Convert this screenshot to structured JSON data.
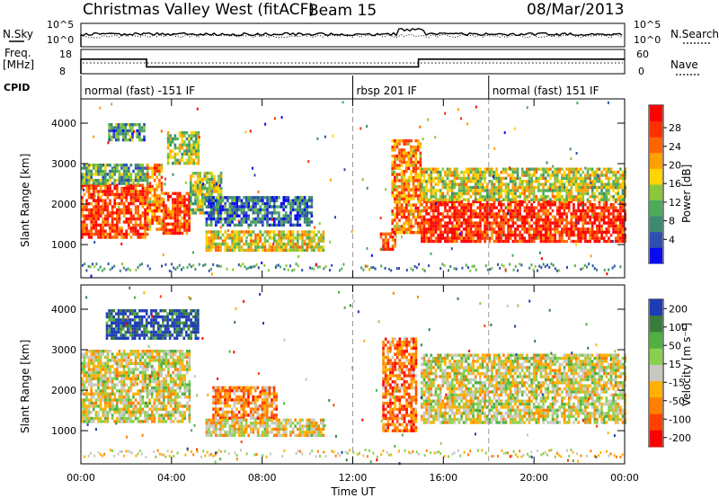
{
  "header": {
    "station": "Christmas Valley West (fitACF)",
    "beam": "Beam 15",
    "date": "08/Mar/2013"
  },
  "top_strip": {
    "nsky_label": "N.Sky",
    "nsky_ticks": [
      "10^5",
      "10^0"
    ],
    "nsearch_label": "N.Search",
    "nsearch_ticks": [
      "10^5",
      "10^0"
    ],
    "freq_label_line1": "Freq.",
    "freq_label_line2": "[MHz]",
    "freq_ticks": [
      "18",
      "8"
    ],
    "nave_label": "Nave",
    "nave_ticks": [
      "60",
      "0"
    ],
    "cpid_label": "CPID",
    "cpid_segments": [
      {
        "label": "normal (fast) -151 IF",
        "start_h": 0,
        "end_h": 12
      },
      {
        "label": "rbsp 201 IF",
        "start_h": 12,
        "end_h": 18
      },
      {
        "label": "normal (fast) 151 IF",
        "start_h": 18,
        "end_h": 24
      }
    ],
    "freq_steps": [
      {
        "start_h": 0,
        "end_h": 2.9,
        "value": 14
      },
      {
        "start_h": 2.9,
        "end_h": 14.9,
        "value": 10.8
      },
      {
        "start_h": 14.9,
        "end_h": 24,
        "value": 14
      }
    ]
  },
  "chart_data": [
    {
      "type": "heatmap",
      "title": "",
      "ylabel": "Slant Range [km]",
      "xlabel": "Time UT",
      "ylim": [
        180,
        4600
      ],
      "xlim": [
        0,
        24
      ],
      "yticks": [
        "1000",
        "2000",
        "3000",
        "4000"
      ],
      "xticks": [
        "00:00",
        "04:00",
        "08:00",
        "12:00",
        "16:00",
        "20:00",
        "00:00"
      ],
      "colorbar_label": "Power [dB]",
      "colorbar_ticks": [
        "4",
        "8",
        "12",
        "16",
        "20",
        "24",
        "28"
      ],
      "colorbar_colors": [
        "#0a0af0",
        "#2f4fb0",
        "#3c8a70",
        "#4cab5a",
        "#8cc63a",
        "#ffd400",
        "#ffa000",
        "#ff6400",
        "#ff3000",
        "#ff0000"
      ],
      "regions": [
        {
          "t0": 0,
          "t1": 2.9,
          "r0": 1150,
          "r1": 2500,
          "level": 0.85
        },
        {
          "t0": 0,
          "t1": 2.9,
          "r0": 2500,
          "r1": 3000,
          "level": 0.35
        },
        {
          "t0": 2.9,
          "t1": 3.6,
          "r0": 1400,
          "r1": 3000,
          "level": 0.7
        },
        {
          "t0": 3.6,
          "t1": 4.8,
          "r0": 1300,
          "r1": 2300,
          "level": 0.85
        },
        {
          "t0": 4.8,
          "t1": 6.2,
          "r0": 1800,
          "r1": 2800,
          "level": 0.45
        },
        {
          "t0": 5.5,
          "t1": 10.7,
          "r0": 850,
          "r1": 1350,
          "level": 0.55
        },
        {
          "t0": 5.5,
          "t1": 10.2,
          "r0": 1500,
          "r1": 2200,
          "level": 0.2
        },
        {
          "t0": 1.2,
          "t1": 2.8,
          "r0": 3600,
          "r1": 4000,
          "level": 0.3
        },
        {
          "t0": 3.8,
          "t1": 5.2,
          "r0": 3000,
          "r1": 3800,
          "level": 0.45
        },
        {
          "t0": 13.2,
          "t1": 13.9,
          "r0": 900,
          "r1": 1300,
          "level": 0.85
        },
        {
          "t0": 13.7,
          "t1": 15,
          "r0": 1300,
          "r1": 3600,
          "level": 0.7
        },
        {
          "t0": 15,
          "t1": 24,
          "r0": 1050,
          "r1": 2100,
          "level": 0.9
        },
        {
          "t0": 15,
          "t1": 24,
          "r0": 2100,
          "r1": 2900,
          "level": 0.5
        }
      ]
    },
    {
      "type": "heatmap",
      "title": "",
      "ylabel": "Slant Range [km]",
      "xlabel": "Time UT",
      "ylim": [
        180,
        4600
      ],
      "xlim": [
        0,
        24
      ],
      "yticks": [
        "1000",
        "2000",
        "3000",
        "4000"
      ],
      "xticks": [
        "00:00",
        "04:00",
        "08:00",
        "12:00",
        "16:00",
        "20:00",
        "00:00"
      ],
      "colorbar_label": "Velocity [m s⁻¹]",
      "colorbar_ticks": [
        "200",
        "100",
        "50",
        "15",
        "-15",
        "-50",
        "-100",
        "-200"
      ],
      "colorbar_colors": [
        "#1e3cb4",
        "#3a7d3a",
        "#50b040",
        "#8ad050",
        "#c8c8c0",
        "#ffb000",
        "#ff8000",
        "#ff4000",
        "#ff0000"
      ],
      "regions": [
        {
          "t0": 0,
          "t1": 4.8,
          "r0": 1200,
          "r1": 3000,
          "level": 0.5
        },
        {
          "t0": 5.8,
          "t1": 8.6,
          "r0": 1300,
          "r1": 2100,
          "level": 0.7
        },
        {
          "t0": 5.5,
          "t1": 10.7,
          "r0": 850,
          "r1": 1300,
          "level": 0.55
        },
        {
          "t0": 1.1,
          "t1": 5.2,
          "r0": 3300,
          "r1": 4000,
          "level": 0.05
        },
        {
          "t0": 13.3,
          "t1": 14.8,
          "r0": 1000,
          "r1": 3300,
          "level": 0.75
        },
        {
          "t0": 15,
          "t1": 24,
          "r0": 1200,
          "r1": 2900,
          "level": 0.5
        }
      ]
    }
  ]
}
